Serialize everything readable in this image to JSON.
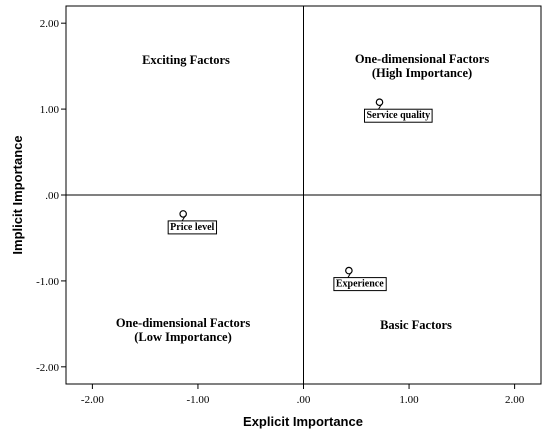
{
  "chart_data": {
    "type": "scatter",
    "xlabel": "Explicit Importance",
    "ylabel": "Implicit Importance",
    "xlim": [
      -2.25,
      2.25
    ],
    "ylim": [
      -2.2,
      2.2
    ],
    "x_ticks": [
      -2.0,
      -1.0,
      0.0,
      1.0,
      2.0
    ],
    "x_tick_labels": [
      "-2.00",
      "-1.00",
      ".00",
      "1.00",
      "2.00"
    ],
    "y_ticks": [
      2.0,
      1.0,
      0.0,
      -1.0,
      -2.0
    ],
    "y_tick_labels": [
      "2.00",
      "1.00",
      ".00",
      "-1.00",
      "-2.00"
    ],
    "reference_lines": {
      "x": 0,
      "y": 0
    },
    "grid": false,
    "points": [
      {
        "label": "Service quality",
        "x": 0.72,
        "y": 1.08
      },
      {
        "label": "Price level",
        "x": -1.14,
        "y": -0.22
      },
      {
        "label": "Experience",
        "x": 0.43,
        "y": -0.88
      }
    ],
    "quadrant_labels": [
      {
        "position": "top-left",
        "lines": [
          "Exciting Factors"
        ]
      },
      {
        "position": "top-right",
        "lines": [
          "One-dimensional Factors",
          "(High Importance)"
        ]
      },
      {
        "position": "bottom-left",
        "lines": [
          "One-dimensional Factors",
          "(Low Importance)"
        ]
      },
      {
        "position": "bottom-right",
        "lines": [
          "Basic Factors"
        ]
      }
    ]
  }
}
